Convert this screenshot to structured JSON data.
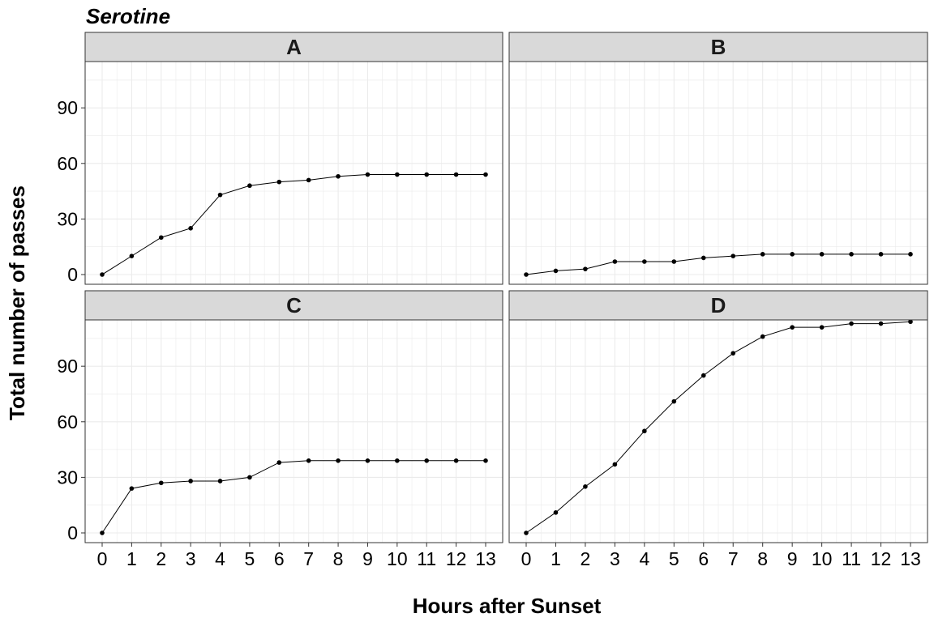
{
  "chart_data": {
    "type": "line",
    "title": "Serotine",
    "xlabel": "Hours after Sunset",
    "ylabel": "Total number of passes",
    "x": [
      0,
      1,
      2,
      3,
      4,
      5,
      6,
      7,
      8,
      9,
      10,
      11,
      12,
      13
    ],
    "xlim": [
      0,
      13
    ],
    "ylim": [
      0,
      115
    ],
    "yticks": [
      0,
      30,
      60,
      90
    ],
    "grid": true,
    "legend": "none",
    "line_color": "#000000",
    "strip_color": "#d9d9d9",
    "grid_color": "#ebebeb",
    "panels": [
      {
        "name": "A",
        "values": [
          0,
          10,
          20,
          25,
          43,
          48,
          50,
          51,
          53,
          54,
          54,
          54,
          54,
          54
        ]
      },
      {
        "name": "B",
        "values": [
          0,
          2,
          3,
          7,
          7,
          7,
          9,
          10,
          11,
          11,
          11,
          11,
          11,
          11
        ]
      },
      {
        "name": "C",
        "values": [
          0,
          24,
          27,
          28,
          28,
          30,
          38,
          39,
          39,
          39,
          39,
          39,
          39,
          39
        ]
      },
      {
        "name": "D",
        "values": [
          0,
          11,
          25,
          37,
          55,
          71,
          85,
          97,
          106,
          111,
          111,
          113,
          113,
          114
        ]
      }
    ]
  }
}
